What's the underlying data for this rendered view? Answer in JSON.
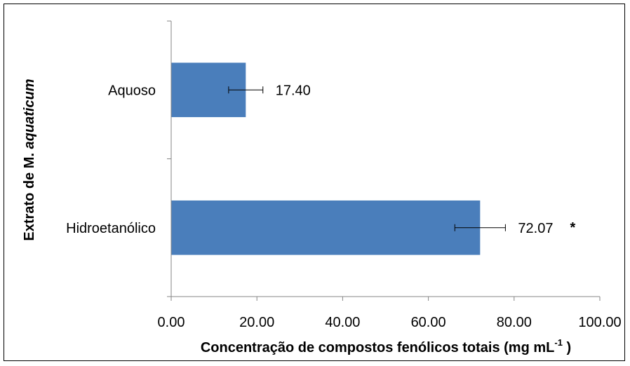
{
  "chart_data": {
    "type": "bar",
    "orientation": "horizontal",
    "categories": [
      "Aquoso",
      "Hidroetanólico"
    ],
    "values": [
      17.4,
      72.07
    ],
    "errors": [
      4.0,
      5.9
    ],
    "data_labels": [
      "17.40",
      "72.07"
    ],
    "significance": [
      "",
      "*"
    ],
    "xlim": [
      0,
      100
    ],
    "xticks": [
      "0.00",
      "20.00",
      "40.00",
      "60.00",
      "80.00",
      "100.00"
    ],
    "xlabel": {
      "main": "Concentração de compostos fenólicos totais (mg mL",
      "sup": "-1",
      "end": " )"
    },
    "ylabel": {
      "main": "Extrato de M. ",
      "italic": "aquaticum"
    },
    "bar_color": "#4a7ebb",
    "grid": false,
    "legend": "none"
  }
}
